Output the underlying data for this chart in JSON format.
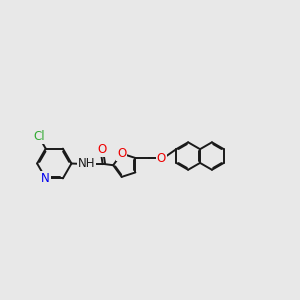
{
  "bg_color": "#e8e8e8",
  "bond_color": "#1a1a1a",
  "bond_width": 1.4,
  "cl_color": "#33aa33",
  "n_color": "#0000ee",
  "o_color": "#ee0000",
  "c_color": "#1a1a1a",
  "font_size": 8.5,
  "fig_width": 3.0,
  "fig_height": 3.0,
  "xlim": [
    0,
    12
  ],
  "ylim": [
    2,
    9
  ]
}
